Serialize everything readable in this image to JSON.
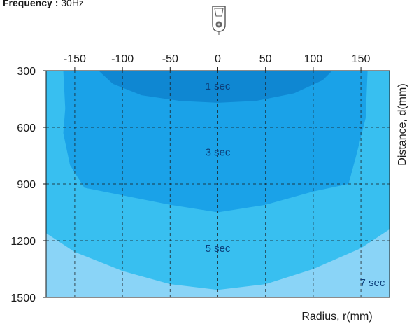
{
  "header": {
    "frequency_label": "Frequency :",
    "frequency_value": "30Hz"
  },
  "chart_data": {
    "type": "area",
    "title": "",
    "xlabel": "Radius, r(mm)",
    "ylabel": "Distance, d(mm)",
    "xlim": [
      -180,
      180
    ],
    "ylim": [
      300,
      1500
    ],
    "x_ticks": [
      "-150",
      "-100",
      "-50",
      "0",
      "50",
      "100",
      "150"
    ],
    "y_ticks": [
      "300",
      "600",
      "900",
      "1200",
      "1500"
    ],
    "x_axis_position": "top",
    "y_axis_inverted": true,
    "grid": "dashed",
    "zones": [
      {
        "label": "7 sec",
        "color": "#8ad4f7",
        "boundary": [
          {
            "r": -180,
            "d": 300
          },
          {
            "r": 180,
            "d": 300
          },
          {
            "r": 180,
            "d": 1500
          },
          {
            "r": -180,
            "d": 1500
          }
        ]
      },
      {
        "label": "5 sec",
        "color": "#38bff0",
        "boundary": [
          {
            "r": -180,
            "d": 1160
          },
          {
            "r": -150,
            "d": 1260
          },
          {
            "r": -100,
            "d": 1360
          },
          {
            "r": -50,
            "d": 1430
          },
          {
            "r": 0,
            "d": 1460
          },
          {
            "r": 50,
            "d": 1430
          },
          {
            "r": 100,
            "d": 1350
          },
          {
            "r": 150,
            "d": 1240
          },
          {
            "r": 180,
            "d": 1140
          }
        ]
      },
      {
        "label": "3 sec",
        "color": "#1aa2e8",
        "boundary": [
          {
            "r": -162,
            "d": 300
          },
          {
            "r": -160,
            "d": 500
          },
          {
            "r": -162,
            "d": 630
          },
          {
            "r": -155,
            "d": 800
          },
          {
            "r": -140,
            "d": 920
          },
          {
            "r": -100,
            "d": 960
          },
          {
            "r": -50,
            "d": 1010
          },
          {
            "r": 0,
            "d": 1050
          },
          {
            "r": 50,
            "d": 1010
          },
          {
            "r": 100,
            "d": 940
          },
          {
            "r": 137,
            "d": 900
          },
          {
            "r": 145,
            "d": 750
          },
          {
            "r": 155,
            "d": 550
          },
          {
            "r": 157,
            "d": 300
          }
        ]
      },
      {
        "label": "1 sec",
        "color": "#0f87d2",
        "boundary": [
          {
            "r": -125,
            "d": 300
          },
          {
            "r": -110,
            "d": 370
          },
          {
            "r": -80,
            "d": 430
          },
          {
            "r": -40,
            "d": 460
          },
          {
            "r": 0,
            "d": 470
          },
          {
            "r": 40,
            "d": 460
          },
          {
            "r": 80,
            "d": 420
          },
          {
            "r": 110,
            "d": 350
          },
          {
            "r": 120,
            "d": 300
          }
        ]
      }
    ],
    "zone_labels": [
      {
        "text": "1 sec",
        "r": 0,
        "d": 400,
        "color": "#0c3f7a"
      },
      {
        "text": "3 sec",
        "r": 0,
        "d": 750,
        "color": "#0c3f7a"
      },
      {
        "text": "5 sec",
        "r": 0,
        "d": 1260,
        "color": "#0c3f7a"
      },
      {
        "text": "7 sec",
        "r": 162,
        "d": 1440,
        "color": "#0c3f7a"
      }
    ]
  }
}
